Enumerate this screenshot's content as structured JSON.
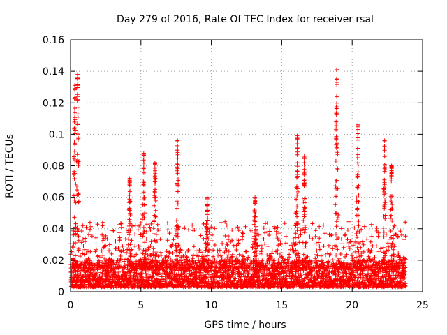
{
  "chart_data": {
    "type": "scatter",
    "title": "Day 279 of 2016, Rate Of TEC Index for receiver rsal",
    "xlabel": "GPS time / hours",
    "ylabel": "ROTI / TECUs",
    "xlim": [
      0,
      25
    ],
    "ylim": [
      0,
      0.16
    ],
    "xticks": [
      0,
      5,
      10,
      15,
      20,
      25
    ],
    "xtick_labels": [
      "0",
      "5",
      "10",
      "15",
      "20",
      "25"
    ],
    "yticks": [
      0,
      0.02,
      0.04,
      0.06,
      0.08,
      0.1,
      0.12,
      0.14,
      0.16
    ],
    "ytick_labels": [
      "0",
      "0.02",
      "0.04",
      "0.06",
      "0.08",
      "0.1",
      "0.12",
      "0.14",
      "0.16"
    ],
    "grid": true,
    "marker": "+",
    "color": "#ff0000",
    "data_span_hours": [
      0,
      23.8
    ],
    "baseline_range": [
      0.003,
      0.02
    ],
    "spikes": [
      {
        "x": 0.5,
        "y": 0.138
      },
      {
        "x": 0.3,
        "y": 0.131
      },
      {
        "x": 4.2,
        "y": 0.072
      },
      {
        "x": 5.2,
        "y": 0.088
      },
      {
        "x": 6.0,
        "y": 0.082
      },
      {
        "x": 7.6,
        "y": 0.096
      },
      {
        "x": 9.7,
        "y": 0.06
      },
      {
        "x": 13.1,
        "y": 0.06
      },
      {
        "x": 16.1,
        "y": 0.099
      },
      {
        "x": 16.6,
        "y": 0.086
      },
      {
        "x": 18.9,
        "y": 0.141
      },
      {
        "x": 20.4,
        "y": 0.106
      },
      {
        "x": 22.3,
        "y": 0.096
      },
      {
        "x": 22.8,
        "y": 0.08
      }
    ]
  }
}
